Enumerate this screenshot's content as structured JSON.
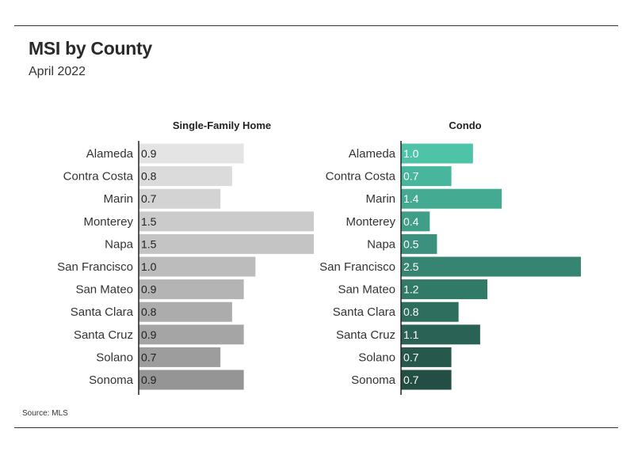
{
  "title": "MSI by County",
  "subtitle": "April 2022",
  "source": "Source: MLS",
  "chart_data": [
    {
      "type": "bar",
      "orientation": "horizontal",
      "title": "Single-Family Home",
      "categories": [
        "Alameda",
        "Contra Costa",
        "Marin",
        "Monterey",
        "Napa",
        "San Francisco",
        "San Mateo",
        "Santa Clara",
        "Santa Cruz",
        "Solano",
        "Sonoma"
      ],
      "values": [
        0.9,
        0.8,
        0.7,
        1.5,
        1.5,
        1.0,
        0.9,
        0.8,
        0.9,
        0.7,
        0.9
      ],
      "labels": [
        "0.9",
        "0.8",
        "0.7",
        "1.5",
        "1.5",
        "1.0",
        "0.9",
        "0.8",
        "0.9",
        "0.7",
        "0.9"
      ],
      "xlim": [
        0,
        1.5
      ],
      "grid": false,
      "colors": [
        "#e4e4e4",
        "#dbdbdb",
        "#d3d3d3",
        "#cbcbcb",
        "#c4c4c4",
        "#bcbcbc",
        "#b4b4b4",
        "#acacac",
        "#a5a5a5",
        "#9d9d9d",
        "#959595"
      ],
      "label_color": "#222222"
    },
    {
      "type": "bar",
      "orientation": "horizontal",
      "title": "Condo",
      "categories": [
        "Alameda",
        "Contra Costa",
        "Marin",
        "Monterey",
        "Napa",
        "San Francisco",
        "San Mateo",
        "Santa Clara",
        "Santa Cruz",
        "Solano",
        "Sonoma"
      ],
      "values": [
        1.0,
        0.7,
        1.4,
        0.4,
        0.5,
        2.5,
        1.2,
        0.8,
        1.1,
        0.7,
        0.7
      ],
      "labels": [
        "1.0",
        "0.7",
        "1.4",
        "0.4",
        "0.5",
        "2.5",
        "1.2",
        "0.8",
        "1.1",
        "0.7",
        "0.7"
      ],
      "xlim": [
        0,
        2.5
      ],
      "grid": false,
      "colors": [
        "#4ec3a8",
        "#48b69d",
        "#44aa91",
        "#3f9e87",
        "#3b917d",
        "#368572",
        "#327a68",
        "#2e6e5e",
        "#2a6355",
        "#26584b",
        "#234e43"
      ],
      "label_color": "#ffffff"
    }
  ]
}
